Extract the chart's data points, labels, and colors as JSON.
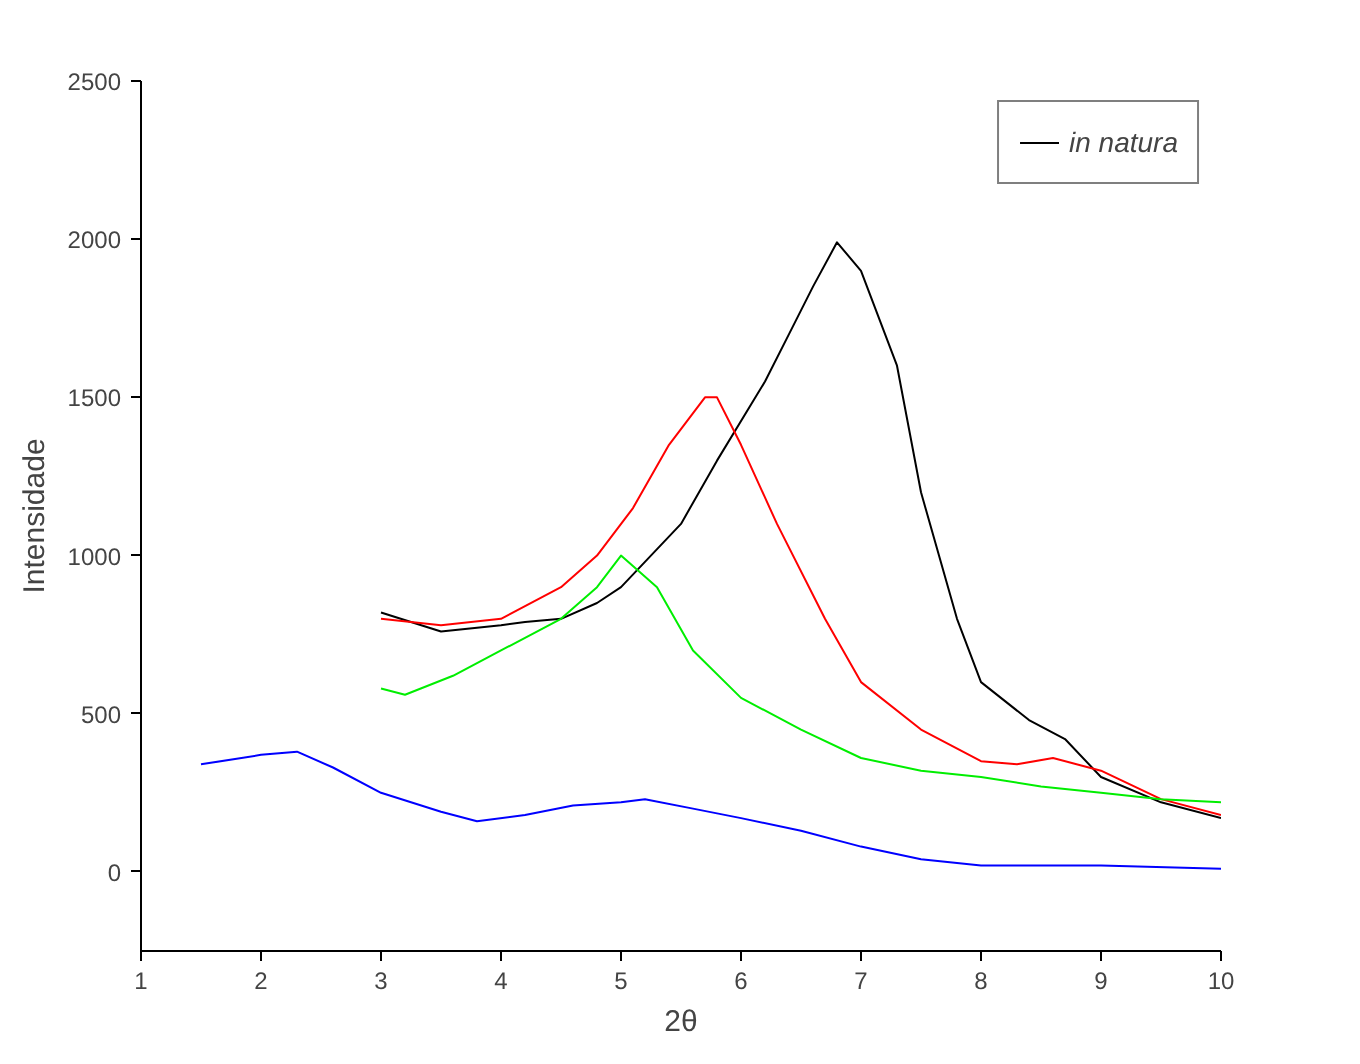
{
  "chart_data": {
    "type": "line",
    "xlabel": "2θ",
    "ylabel": "Intensidade",
    "xlim": [
      1,
      10
    ],
    "ylim": [
      -250,
      2500
    ],
    "xticks": [
      1,
      2,
      3,
      4,
      5,
      6,
      7,
      8,
      9,
      10
    ],
    "yticks": [
      0,
      500,
      1000,
      1500,
      2000,
      2500
    ],
    "grid": false,
    "legend": "top right",
    "marker": "none",
    "line_style": "solid",
    "series": [
      {
        "name": "in natura",
        "color": "#000000",
        "x": [
          3,
          3.5,
          4,
          4.2,
          4.5,
          4.8,
          5,
          5.5,
          5.8,
          6.2,
          6.4,
          6.6,
          6.8,
          7,
          7.3,
          7.5,
          7.8,
          8,
          8.4,
          8.7,
          9,
          9.5,
          10
        ],
        "values": [
          820,
          760,
          780,
          790,
          800,
          850,
          900,
          1100,
          1300,
          1550,
          1700,
          1850,
          1990,
          1900,
          1600,
          1200,
          800,
          600,
          480,
          420,
          300,
          220,
          170
        ]
      },
      {
        "color": "#ff0000",
        "x": [
          3,
          3.5,
          4,
          4.5,
          4.8,
          5.1,
          5.4,
          5.7,
          5.8,
          6,
          6.3,
          6.7,
          7,
          7.5,
          8,
          8.3,
          8.6,
          9,
          9.5,
          10
        ],
        "values": [
          800,
          780,
          800,
          900,
          1000,
          1150,
          1350,
          1500,
          1500,
          1350,
          1100,
          800,
          600,
          450,
          350,
          340,
          360,
          320,
          230,
          180
        ]
      },
      {
        "color": "#00ee00",
        "x": [
          3,
          3.2,
          3.6,
          4,
          4.5,
          4.8,
          5,
          5.3,
          5.6,
          6,
          6.5,
          7,
          7.5,
          8,
          8.5,
          9,
          9.5,
          10
        ],
        "values": [
          580,
          560,
          620,
          700,
          800,
          900,
          1000,
          900,
          700,
          550,
          450,
          360,
          320,
          300,
          270,
          250,
          230,
          220
        ]
      },
      {
        "color": "#0000ff",
        "x": [
          1.5,
          2,
          2.3,
          2.6,
          3,
          3.5,
          3.8,
          4.2,
          4.6,
          5,
          5.2,
          5.6,
          6,
          6.5,
          7,
          7.5,
          8,
          9,
          10
        ],
        "values": [
          340,
          370,
          380,
          330,
          250,
          190,
          160,
          180,
          210,
          220,
          230,
          200,
          170,
          130,
          80,
          40,
          20,
          20,
          10
        ]
      }
    ]
  }
}
